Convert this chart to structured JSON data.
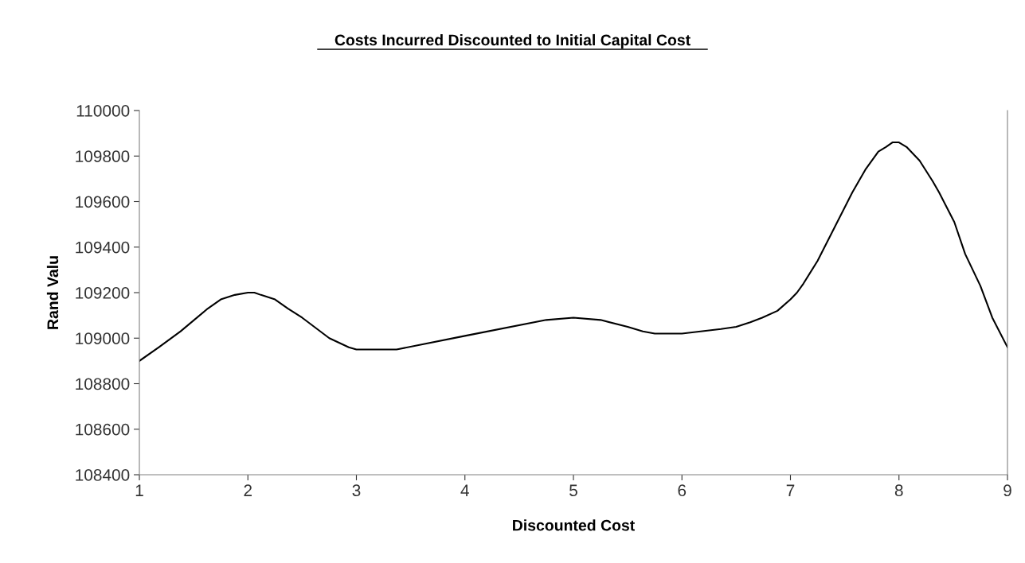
{
  "chart_data": {
    "type": "line",
    "title": "Costs Incurred Discounted to Initial Capital Cost",
    "xlabel": "Discounted Cost",
    "ylabel": "Rand Valu",
    "xlim": [
      1,
      9
    ],
    "xticks": [
      1,
      2,
      3,
      4,
      5,
      6,
      7,
      8,
      9
    ],
    "ylim": [
      108400,
      110000
    ],
    "yticks": [
      108400,
      108600,
      108800,
      109000,
      109200,
      109400,
      109600,
      109800,
      110000
    ],
    "grid": false,
    "marker": "none",
    "line_style": "solid",
    "series": [
      {
        "color": "#000000",
        "x": [
          1,
          1.18,
          1.38,
          1.63,
          1.75,
          1.88,
          2,
          2.06,
          2.12,
          2.25,
          2.37,
          2.5,
          2.75,
          2.93,
          3,
          3.12,
          3.37,
          4,
          4.75,
          5,
          5.25,
          5.5,
          5.64,
          5.75,
          5.89,
          6,
          6.36,
          6.5,
          6.63,
          6.74,
          6.88,
          7,
          7.06,
          7.12,
          7.25,
          7.41,
          7.57,
          7.63,
          7.69,
          7.81,
          7.88,
          7.94,
          8,
          8.07,
          8.19,
          8.31,
          8.37,
          8.51,
          8.61,
          8.75,
          8.86,
          9
        ],
        "values": [
          108900,
          108960,
          109030,
          109130,
          109170,
          109190,
          109200,
          109200,
          109190,
          109170,
          109130,
          109090,
          109000,
          108960,
          108950,
          108950,
          108950,
          109010,
          109080,
          109090,
          109080,
          109050,
          109030,
          109020,
          109020,
          109020,
          109040,
          109050,
          109070,
          109090,
          109120,
          109170,
          109200,
          109240,
          109340,
          109490,
          109640,
          109690,
          109740,
          109820,
          109840,
          109860,
          109860,
          109840,
          109780,
          109690,
          109640,
          109510,
          109370,
          109230,
          109090,
          108960
        ]
      }
    ]
  }
}
